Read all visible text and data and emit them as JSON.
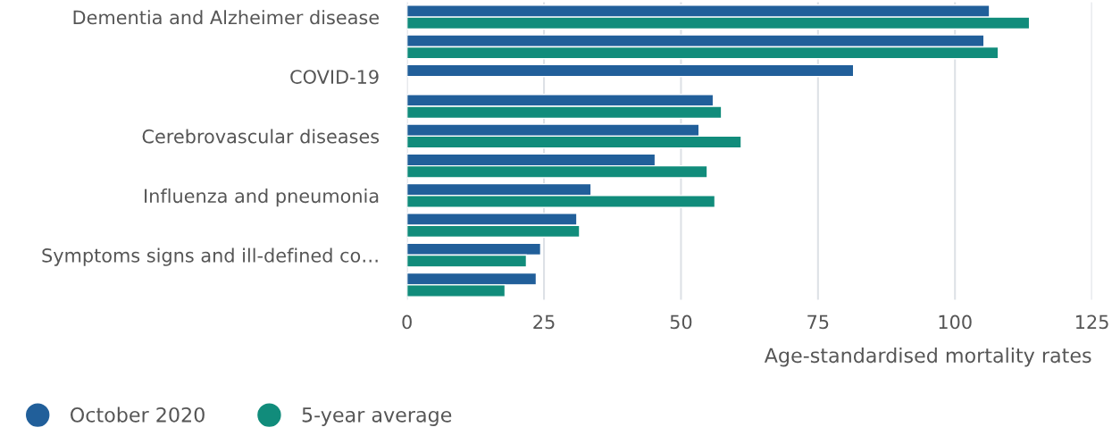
{
  "chart_data": {
    "type": "bar",
    "orientation": "horizontal",
    "xlabel": "Age-standardised mortality rates",
    "categories": [
      "Dementia and Alzheimer disease",
      null,
      "COVID-19",
      null,
      "Cerebrovascular diseases",
      null,
      "Influenza and pneumonia",
      null,
      "Symptoms signs and ill-defined co…",
      null
    ],
    "series": [
      {
        "name": "October 2020",
        "color": "#215f9a",
        "values": [
          106.3,
          105.3,
          81.5,
          55.9,
          53.3,
          45.3,
          33.6,
          31.0,
          24.4,
          23.6
        ]
      },
      {
        "name": "5-year average",
        "color": "#118c7b",
        "values": [
          113.6,
          107.9,
          null,
          57.4,
          61.0,
          54.8,
          56.2,
          31.5,
          21.8,
          17.9
        ]
      }
    ],
    "xlim": [
      0,
      125
    ],
    "xticks": [
      0,
      25,
      50,
      75,
      100,
      125
    ],
    "grid": "x",
    "legend": "bottom"
  }
}
